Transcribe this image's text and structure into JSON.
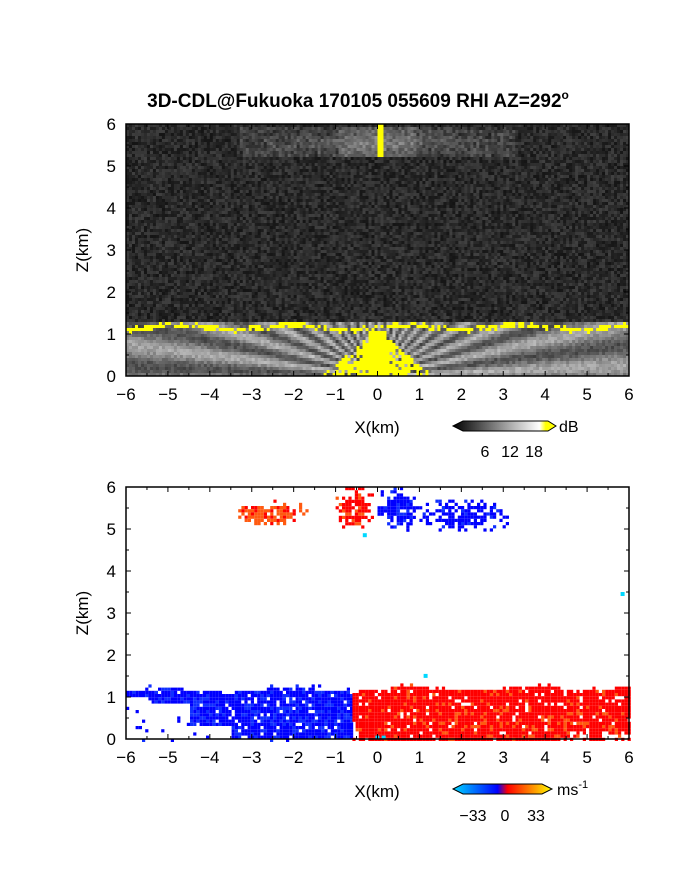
{
  "chart_data": [
    {
      "type": "heatmap",
      "panel": "top",
      "title": "3D-CDL@Fukuoka 170105 055609 RHI AZ=292",
      "title_superscript": "o",
      "xlabel": "X(km)",
      "ylabel": "Z(km)",
      "xlim": [
        -6,
        6
      ],
      "ylim": [
        0,
        6
      ],
      "xticks": [
        "-6",
        "-5",
        "-4",
        "-3",
        "-2",
        "-1",
        "0",
        "1",
        "2",
        "3",
        "4",
        "5",
        "6"
      ],
      "yticks": [
        "0",
        "1",
        "2",
        "3",
        "4",
        "5",
        "6"
      ],
      "colorbar": {
        "unit": "dB",
        "ticks": [
          "6",
          "12",
          "18"
        ],
        "tick_values": [
          6,
          12,
          18
        ],
        "range": [
          0,
          21
        ],
        "colors": [
          "#000000",
          "#ffffff",
          "#ffff00"
        ]
      },
      "features": {
        "background_noise_db": [
          1,
          5
        ],
        "cloud_layer_km": [
          5.2,
          5.9
        ],
        "boundary_layer_top_km": [
          1.1,
          1.3
        ],
        "strong_echo_db": 18
      }
    },
    {
      "type": "heatmap",
      "panel": "bottom",
      "xlabel": "X(km)",
      "ylabel": "Z(km)",
      "xlim": [
        -6,
        6
      ],
      "ylim": [
        0,
        6
      ],
      "xticks": [
        "-6",
        "-5",
        "-4",
        "-3",
        "-2",
        "-1",
        "0",
        "1",
        "2",
        "3",
        "4",
        "5",
        "6"
      ],
      "yticks": [
        "0",
        "1",
        "2",
        "3",
        "4",
        "5",
        "6"
      ],
      "colorbar": {
        "unit": "ms",
        "unit_superscript": "-1",
        "ticks": [
          "−33",
          "0",
          "33"
        ],
        "tick_values": [
          -33,
          0,
          33
        ],
        "range": [
          -40,
          40
        ],
        "colors": [
          "#00d8ff",
          "#0000ff",
          "#ff0000",
          "#ffff00"
        ]
      },
      "regions": [
        {
          "x": [
            -3.4,
            -1.7
          ],
          "z": [
            5.1,
            5.7
          ],
          "value_ms": 14
        },
        {
          "x": [
            -1.0,
            -0.1
          ],
          "z": [
            5.0,
            6.0
          ],
          "value_ms": 10
        },
        {
          "x": [
            0.0,
            1.0
          ],
          "z": [
            5.0,
            6.0
          ],
          "value_ms": -10
        },
        {
          "x": [
            1.0,
            3.1
          ],
          "z": [
            5.0,
            5.7
          ],
          "value_ms": -9
        },
        {
          "x": [
            -6.0,
            -0.6
          ],
          "z": [
            0.0,
            1.3
          ],
          "value_ms": -10
        },
        {
          "x": [
            -0.6,
            6.0
          ],
          "z": [
            0.0,
            1.4
          ],
          "value_ms": 9
        }
      ]
    }
  ]
}
